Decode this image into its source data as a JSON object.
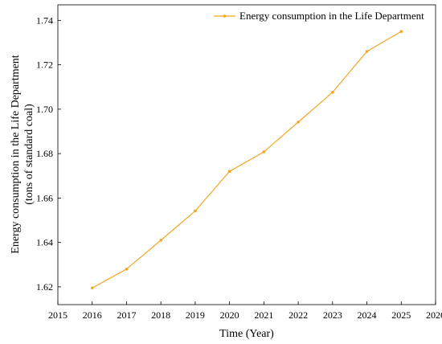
{
  "chart_data": {
    "type": "line",
    "xlabel": "Time (Year)",
    "ylabel_line1": "Energy consumption in the Life Department",
    "ylabel_line2": "(tons of standard coal)",
    "xlim": [
      2015,
      2026
    ],
    "ylim": [
      1.612,
      1.747
    ],
    "xticks": [
      2015,
      2016,
      2017,
      2018,
      2019,
      2020,
      2021,
      2022,
      2023,
      2024,
      2025,
      2026
    ],
    "yticks": [
      1.62,
      1.64,
      1.66,
      1.68,
      1.7,
      1.72,
      1.74
    ],
    "ytick_labels": [
      "1.62",
      "1.64",
      "1.66",
      "1.68",
      "1.70",
      "1.72",
      "1.74"
    ],
    "grid": false,
    "legend_position": "top-right",
    "series": [
      {
        "name": "Energy consumption in the Life Department",
        "color": "#f5a623",
        "marker": "dot",
        "x": [
          2016,
          2017,
          2018,
          2019,
          2020,
          2021,
          2022,
          2023,
          2024,
          2025
        ],
        "y": [
          1.6195,
          1.628,
          1.641,
          1.6542,
          1.672,
          1.6808,
          1.6942,
          1.7076,
          1.726,
          1.735
        ]
      }
    ]
  }
}
